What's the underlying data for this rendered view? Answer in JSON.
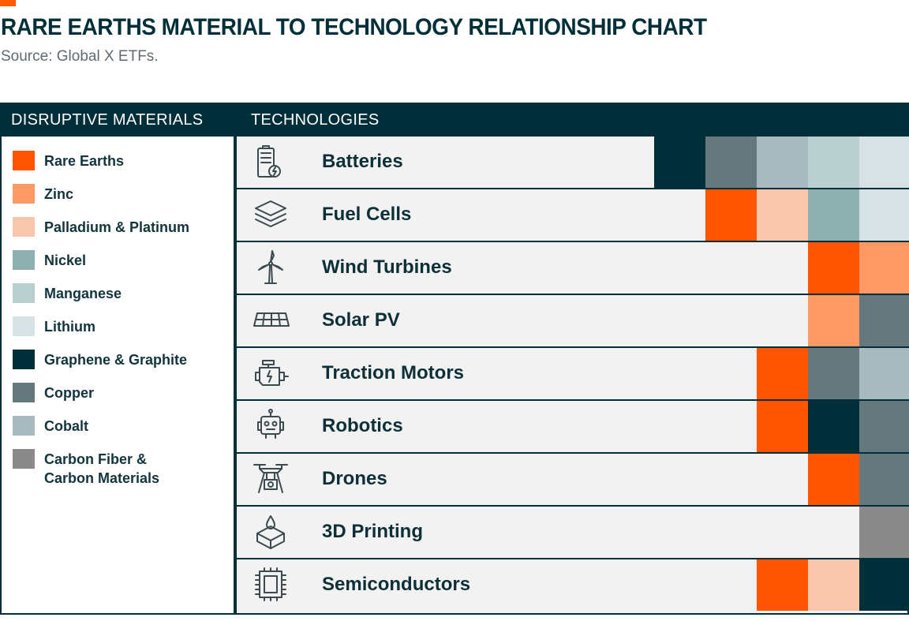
{
  "title": "RARE EARTHS MATERIAL TO TECHNOLOGY RELATIONSHIP CHART",
  "subtitle": "Source: Global X ETFs.",
  "headers": {
    "materials": "DISRUPTIVE MATERIALS",
    "technologies": "TECHNOLOGIES"
  },
  "colors": {
    "accent": "#ff5a00",
    "header": "#002f3a",
    "row_bg": "#f2f2f2"
  },
  "materials": [
    {
      "label": "Rare Earths",
      "color": "#ff5500"
    },
    {
      "label": "Zinc",
      "color": "#ff9966"
    },
    {
      "label": "Palladium & Platinum",
      "color": "#f8c6ad"
    },
    {
      "label": "Nickel",
      "color": "#8fb0b0"
    },
    {
      "label": "Manganese",
      "color": "#b9cfd0"
    },
    {
      "label": "Lithium",
      "color": "#d6e2e3"
    },
    {
      "label": "Graphene & Graphite",
      "color": "#002f3a"
    },
    {
      "label": "Copper",
      "color": "#64787d"
    },
    {
      "label": "Cobalt",
      "color": "#a9babe"
    },
    {
      "label": "Carbon Fiber &\nCarbon Materials",
      "color": "#8a8a8a"
    }
  ],
  "technologies": [
    {
      "label": "Batteries",
      "icon": "battery-icon",
      "materials": [
        "Graphene & Graphite",
        "Copper",
        "Cobalt",
        "Manganese",
        "Lithium"
      ]
    },
    {
      "label": "Fuel Cells",
      "icon": "layers-icon",
      "materials": [
        "Rare Earths",
        "Palladium & Platinum",
        "Nickel",
        "Lithium"
      ]
    },
    {
      "label": "Wind Turbines",
      "icon": "wind-turbine-icon",
      "materials": [
        "Rare Earths",
        "Zinc"
      ]
    },
    {
      "label": "Solar PV",
      "icon": "solar-panel-icon",
      "materials": [
        "Zinc",
        "Copper"
      ]
    },
    {
      "label": "Traction Motors",
      "icon": "motor-icon",
      "materials": [
        "Rare Earths",
        "Copper",
        "Cobalt"
      ]
    },
    {
      "label": "Robotics",
      "icon": "robot-icon",
      "materials": [
        "Rare Earths",
        "Graphene & Graphite",
        "Copper"
      ]
    },
    {
      "label": "Drones",
      "icon": "drone-icon",
      "materials": [
        "Rare Earths",
        "Copper"
      ]
    },
    {
      "label": "3D Printing",
      "icon": "3d-printing-icon",
      "materials": [
        "Carbon Fiber &\nCarbon Materials"
      ]
    },
    {
      "label": "Semiconductors",
      "icon": "chip-icon",
      "materials": [
        "Rare Earths",
        "Palladium & Platinum",
        "Graphene & Graphite"
      ]
    }
  ]
}
